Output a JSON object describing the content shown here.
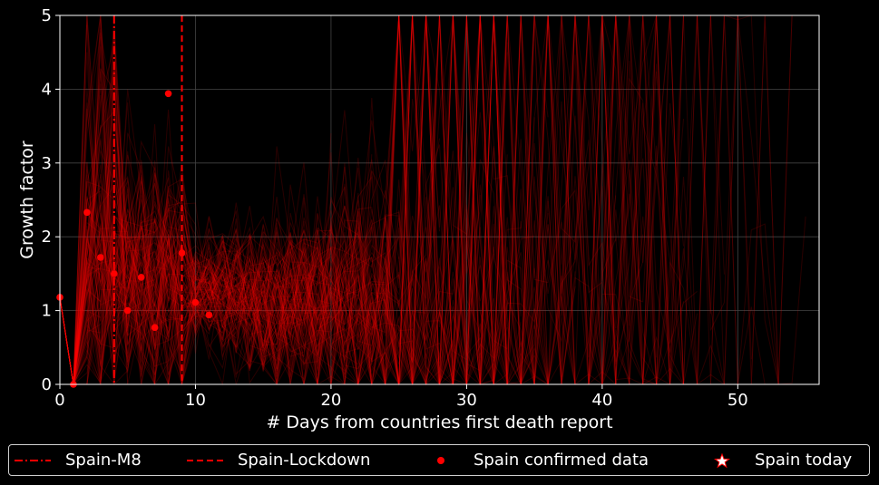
{
  "chart_data": {
    "type": "line",
    "xlabel": "# Days from countries first death report",
    "ylabel": "Growth factor",
    "xlim": [
      0,
      56
    ],
    "ylim": [
      0,
      5
    ],
    "x_ticks": [
      0,
      10,
      20,
      30,
      40,
      50
    ],
    "y_ticks": [
      0,
      1,
      2,
      3,
      4,
      5
    ],
    "grid": true,
    "legend_placement": "bottom",
    "background": "#000000",
    "series_color": "#ff0000",
    "vertical_lines": [
      {
        "name": "Spain-M8",
        "x": 4,
        "style": "dashdot"
      },
      {
        "name": "Spain-Lockdown",
        "x": 9,
        "style": "dashed"
      }
    ],
    "series": [
      {
        "name": "Spain confirmed data",
        "kind": "scatter",
        "points": [
          [
            0,
            1.18
          ],
          [
            1,
            0.0
          ],
          [
            2,
            2.33
          ],
          [
            3,
            1.72
          ],
          [
            4,
            1.5
          ],
          [
            5,
            1.0
          ],
          [
            6,
            1.45
          ],
          [
            7,
            0.77
          ],
          [
            8,
            3.94
          ],
          [
            9,
            1.78
          ],
          [
            10,
            1.11
          ],
          [
            11,
            0.94
          ]
        ]
      },
      {
        "name": "Spain today",
        "kind": "star"
      }
    ]
  },
  "legend": {
    "items": [
      {
        "label": "Spain-M8"
      },
      {
        "label": "Spain-Lockdown"
      },
      {
        "label": "Spain confirmed data"
      },
      {
        "label": "Spain today"
      }
    ]
  }
}
